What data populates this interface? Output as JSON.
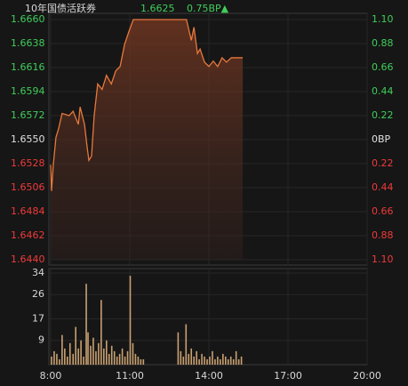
{
  "chart_data": [
    {
      "type": "line",
      "title": "10年国债活跃券",
      "quote": {
        "price": 1.6625,
        "change": "0.75BP▲"
      },
      "color": "#e8783c",
      "up_color": "#3fce5a",
      "down_color": "#f03a3a",
      "grid": true,
      "x": [
        480,
        482,
        486,
        492,
        498,
        506,
        522,
        531,
        543,
        547,
        557,
        563,
        567,
        573,
        579,
        587,
        597,
        607,
        618,
        628,
        638,
        648,
        658,
        668,
        789,
        793,
        800,
        806,
        814,
        820,
        830,
        840,
        850,
        860,
        870,
        880,
        891,
        917
      ],
      "values": [
        1.6527,
        1.6503,
        1.6527,
        1.6552,
        1.656,
        1.6574,
        1.6572,
        1.6576,
        1.6564,
        1.658,
        1.6564,
        1.6543,
        1.6531,
        1.6535,
        1.6572,
        1.6601,
        1.6596,
        1.6609,
        1.6601,
        1.6613,
        1.6617,
        1.6637,
        1.6649,
        1.666,
        1.666,
        1.6653,
        1.6641,
        1.6653,
        1.6629,
        1.6633,
        1.6621,
        1.6617,
        1.6622,
        1.6617,
        1.6625,
        1.6621,
        1.6625,
        1.6625
      ],
      "xlim": [
        480,
        1200
      ],
      "ylim": [
        1.644,
        1.666
      ],
      "yticks": [
        {
          "value": 1.666,
          "label": "1.6660"
        },
        1.6638,
        1.6616,
        1.6594,
        1.6572,
        {
          "value": 1.655,
          "label": "1.6550"
        },
        1.6528,
        1.6506,
        1.6484,
        1.6462,
        {
          "value": 1.644,
          "label": "1.6440"
        }
      ],
      "y2lim": [
        -1.1,
        1.1
      ],
      "y2ticks": [
        {
          "value": 1.1,
          "label": "1.10"
        },
        {
          "value": 0.88,
          "label": "0.88"
        },
        {
          "value": 0.66,
          "label": "0.66"
        },
        {
          "value": 0.44,
          "label": "0.44"
        },
        {
          "value": 0.22,
          "label": "0.22"
        },
        {
          "value": 0,
          "label": "0BP"
        },
        {
          "value": -0.22,
          "label": "0.22"
        },
        {
          "value": -0.44,
          "label": "0.44"
        },
        {
          "value": -0.66,
          "label": "0.66"
        },
        {
          "value": -0.88,
          "label": "0.88"
        },
        {
          "value": -1.1,
          "label": "1.10"
        }
      ]
    },
    {
      "type": "bar",
      "color": "#c9a071",
      "grid": true,
      "x": [
        482,
        488,
        494,
        500,
        506,
        512,
        518,
        524,
        531,
        537,
        543,
        549,
        555,
        561,
        565,
        571,
        577,
        583,
        589,
        595,
        601,
        607,
        613,
        619,
        625,
        631,
        637,
        643,
        649,
        655,
        661,
        667,
        673,
        679,
        685,
        691,
        770,
        776,
        782,
        788,
        794,
        800,
        806,
        812,
        818,
        824,
        830,
        836,
        842,
        848,
        854,
        860,
        866,
        872,
        878,
        884,
        890,
        896,
        902,
        908,
        914
      ],
      "values": [
        3,
        5,
        4,
        2,
        11,
        6,
        3,
        8,
        4,
        14,
        6,
        9,
        3,
        30,
        12,
        7,
        10,
        5,
        8,
        24,
        6,
        9,
        4,
        7,
        5,
        3,
        4,
        6,
        3,
        5,
        33,
        8,
        4,
        3,
        2,
        2,
        12,
        5,
        3,
        15,
        4,
        6,
        3,
        5,
        2,
        4,
        3,
        2,
        3,
        5,
        2,
        3,
        2,
        4,
        3,
        2,
        3,
        2,
        5,
        2,
        3
      ],
      "xlim": [
        480,
        1200
      ],
      "xticks": [
        {
          "value": 480,
          "label": "8:00"
        },
        {
          "value": 660,
          "label": "11:00"
        },
        {
          "value": 840,
          "label": "14:00"
        },
        {
          "value": 1020,
          "label": "17:00"
        },
        {
          "value": 1200,
          "label": "20:00"
        }
      ],
      "ylim": [
        0,
        34
      ],
      "yticks": [
        9,
        17,
        26,
        34
      ]
    }
  ]
}
